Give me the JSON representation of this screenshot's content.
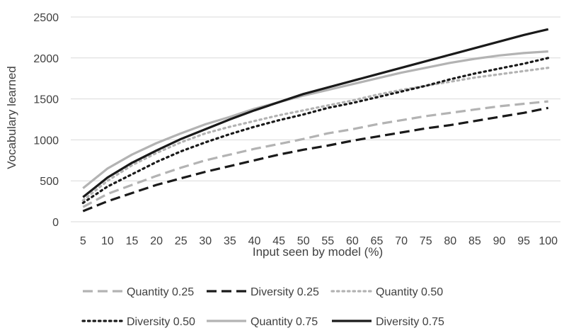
{
  "chart_data": {
    "type": "line",
    "title": "",
    "xlabel": "Input seen by model (%)",
    "ylabel": "Vocabulary learned",
    "x": [
      5,
      10,
      15,
      20,
      25,
      30,
      35,
      40,
      45,
      50,
      55,
      60,
      65,
      70,
      75,
      80,
      85,
      90,
      95,
      100
    ],
    "x_tick_labels": [
      "5",
      "10",
      "15",
      "20",
      "25",
      "30",
      "35",
      "40",
      "45",
      "50",
      "55",
      "60",
      "65",
      "70",
      "75",
      "80",
      "85",
      "90",
      "95",
      "100"
    ],
    "ylim": [
      0,
      2500
    ],
    "y_ticks": [
      0,
      500,
      1000,
      1500,
      2000,
      2500
    ],
    "y_tick_labels": [
      "0",
      "500",
      "1000",
      "1500",
      "2000",
      "2500"
    ],
    "grid": "horizontal",
    "legend_position": "bottom",
    "series": [
      {
        "name": "Quantity 0.25",
        "color": "#b3b3b3",
        "style": "dashed",
        "values": [
          180,
          340,
          450,
          560,
          660,
          750,
          820,
          890,
          950,
          1010,
          1080,
          1130,
          1190,
          1240,
          1290,
          1330,
          1370,
          1410,
          1440,
          1470
        ]
      },
      {
        "name": "Diversity 0.25",
        "color": "#1a1a1a",
        "style": "dashed",
        "values": [
          130,
          250,
          350,
          450,
          530,
          610,
          680,
          750,
          820,
          880,
          930,
          990,
          1040,
          1090,
          1140,
          1180,
          1230,
          1280,
          1330,
          1390
        ]
      },
      {
        "name": "Quantity 0.50",
        "color": "#b3b3b3",
        "style": "dotted",
        "values": [
          260,
          500,
          690,
          840,
          970,
          1080,
          1160,
          1230,
          1300,
          1360,
          1420,
          1480,
          1550,
          1610,
          1660,
          1710,
          1760,
          1800,
          1840,
          1880
        ]
      },
      {
        "name": "Diversity 0.50",
        "color": "#1a1a1a",
        "style": "dotted",
        "values": [
          230,
          430,
          580,
          730,
          860,
          970,
          1070,
          1160,
          1240,
          1310,
          1390,
          1450,
          1520,
          1590,
          1660,
          1740,
          1810,
          1870,
          1930,
          2000
        ]
      },
      {
        "name": "Quantity 0.75",
        "color": "#b3b3b3",
        "style": "solid",
        "values": [
          410,
          650,
          820,
          960,
          1080,
          1190,
          1280,
          1380,
          1460,
          1540,
          1610,
          1680,
          1750,
          1820,
          1880,
          1940,
          1990,
          2030,
          2060,
          2080
        ]
      },
      {
        "name": "Diversity 0.75",
        "color": "#1a1a1a",
        "style": "solid",
        "values": [
          300,
          540,
          720,
          870,
          1010,
          1130,
          1250,
          1360,
          1460,
          1560,
          1640,
          1720,
          1800,
          1880,
          1960,
          2040,
          2120,
          2200,
          2280,
          2350
        ]
      }
    ]
  }
}
